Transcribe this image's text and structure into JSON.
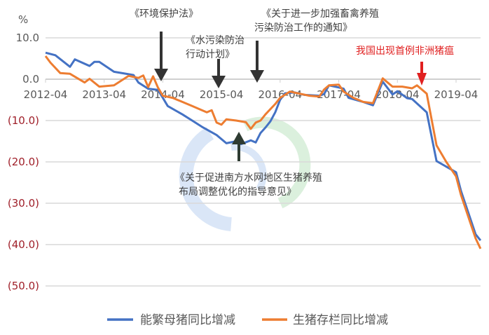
{
  "chart_data": {
    "type": "line",
    "ylabel": "%",
    "ylim": [
      -50,
      10
    ],
    "yticks": [
      10,
      0,
      -10,
      -20,
      -30,
      -40,
      -50
    ],
    "ytick_labels": [
      "10.0",
      "0.0",
      "(10.0)",
      "(20.0)",
      "(30.0)",
      "(40.0)",
      "(50.0)"
    ],
    "xtick_labels": [
      "2012-04",
      "2013-04",
      "2014-04",
      "2015-04",
      "2016-04",
      "2017-04",
      "2018-04",
      "2019-04"
    ],
    "xrange": [
      "2012-04",
      "2019-09"
    ],
    "grid": true,
    "legend_placement": "bottom",
    "series": [
      {
        "name": "能繁母猪同比增减",
        "color": "#4472c4",
        "points": [
          [
            "2012-04",
            6.4
          ],
          [
            "2012-06",
            5.8
          ],
          [
            "2012-09",
            3.0
          ],
          [
            "2012-10",
            4.8
          ],
          [
            "2013-01",
            3.2
          ],
          [
            "2013-02",
            4.2
          ],
          [
            "2013-03",
            4.2
          ],
          [
            "2013-06",
            1.8
          ],
          [
            "2013-09",
            1.2
          ],
          [
            "2013-10",
            1.0
          ],
          [
            "2013-11",
            -0.8
          ],
          [
            "2014-01",
            -2.3
          ],
          [
            "2014-03",
            -2.6
          ],
          [
            "2014-04",
            -4.5
          ],
          [
            "2014-05",
            -6.5
          ],
          [
            "2014-08",
            -8.5
          ],
          [
            "2014-10",
            -10.0
          ],
          [
            "2014-12",
            -11.5
          ],
          [
            "2015-03",
            -13.5
          ],
          [
            "2015-05",
            -15.5
          ],
          [
            "2015-07",
            -15.0
          ],
          [
            "2015-08",
            -15.7
          ],
          [
            "2015-10",
            -14.8
          ],
          [
            "2015-11",
            -15.3
          ],
          [
            "2015-12",
            -13.0
          ],
          [
            "2016-01",
            -11.7
          ],
          [
            "2016-02",
            -10.2
          ],
          [
            "2016-03",
            -8.0
          ],
          [
            "2016-04",
            -5.0
          ],
          [
            "2016-05",
            -3.4
          ],
          [
            "2016-07",
            -3.2
          ],
          [
            "2016-09",
            -3.8
          ],
          [
            "2016-12",
            -4.0
          ],
          [
            "2017-01",
            -3.6
          ],
          [
            "2017-02",
            -1.5
          ],
          [
            "2017-04",
            -2.0
          ],
          [
            "2017-05",
            -2.3
          ],
          [
            "2017-06",
            -4.5
          ],
          [
            "2017-09",
            -5.5
          ],
          [
            "2017-11",
            -6.3
          ],
          [
            "2018-01",
            -0.6
          ],
          [
            "2018-03",
            -3.7
          ],
          [
            "2018-04",
            -2.9
          ],
          [
            "2018-06",
            -4.6
          ],
          [
            "2018-07",
            -4.8
          ],
          [
            "2018-10",
            -8.0
          ],
          [
            "2018-12",
            -19.8
          ],
          [
            "2019-04",
            -22.5
          ],
          [
            "2019-05",
            -27.0
          ],
          [
            "2019-07",
            -34.0
          ],
          [
            "2019-08",
            -37.5
          ],
          [
            "2019-09",
            -39.0
          ]
        ]
      },
      {
        "name": "生猪存栏同比增减",
        "color": "#ed7d31",
        "points": [
          [
            "2012-04",
            5.6
          ],
          [
            "2012-05",
            4.0
          ],
          [
            "2012-07",
            1.5
          ],
          [
            "2012-09",
            1.3
          ],
          [
            "2012-12",
            -0.8
          ],
          [
            "2013-01",
            0.1
          ],
          [
            "2013-03",
            -1.8
          ],
          [
            "2013-06",
            -1.5
          ],
          [
            "2013-09",
            0.8
          ],
          [
            "2013-11",
            0.3
          ],
          [
            "2013-12",
            0.9
          ],
          [
            "2014-01",
            -1.9
          ],
          [
            "2014-02",
            0.7
          ],
          [
            "2014-03",
            -2.0
          ],
          [
            "2014-04",
            -4.0
          ],
          [
            "2014-06",
            -4.5
          ],
          [
            "2014-08",
            -5.5
          ],
          [
            "2014-10",
            -6.5
          ],
          [
            "2014-12",
            -7.5
          ],
          [
            "2015-01",
            -8.0
          ],
          [
            "2015-02",
            -7.5
          ],
          [
            "2015-03",
            -10.5
          ],
          [
            "2015-04",
            -11.0
          ],
          [
            "2015-05",
            -9.7
          ],
          [
            "2015-07",
            -10.0
          ],
          [
            "2015-09",
            -10.4
          ],
          [
            "2015-10",
            -12.0
          ],
          [
            "2015-11",
            -10.5
          ],
          [
            "2015-12",
            -10.0
          ],
          [
            "2016-01",
            -8.5
          ],
          [
            "2016-03",
            -6.0
          ],
          [
            "2016-04",
            -4.5
          ],
          [
            "2016-06",
            -3.0
          ],
          [
            "2016-08",
            -3.5
          ],
          [
            "2016-10",
            -4.0
          ],
          [
            "2016-12",
            -4.2
          ],
          [
            "2017-01",
            -2.5
          ],
          [
            "2017-02",
            -1.5
          ],
          [
            "2017-04",
            -1.3
          ],
          [
            "2017-05",
            -3.0
          ],
          [
            "2017-07",
            -4.5
          ],
          [
            "2017-09",
            -5.5
          ],
          [
            "2017-11",
            -5.8
          ],
          [
            "2018-01",
            0.2
          ],
          [
            "2018-03",
            -1.8
          ],
          [
            "2018-05",
            -1.8
          ],
          [
            "2018-07",
            -2.2
          ],
          [
            "2018-08",
            -1.5
          ],
          [
            "2018-10",
            -3.5
          ],
          [
            "2018-12",
            -16.0
          ],
          [
            "2019-02",
            -20.0
          ],
          [
            "2019-04",
            -23.5
          ],
          [
            "2019-05",
            -28.0
          ],
          [
            "2019-07",
            -35.0
          ],
          [
            "2019-08",
            -38.5
          ],
          [
            "2019-09",
            -41.0
          ]
        ]
      }
    ],
    "annotations": [
      {
        "lines": [
          "《环境保护法》"
        ],
        "date": "2014-04",
        "arrow": "down",
        "color": "#404040"
      },
      {
        "lines": [
          "《水污染防治",
          "行动计划》"
        ],
        "date": "2015-04",
        "arrow": "down",
        "color": "#404040"
      },
      {
        "lines": [
          "《关于进一步加强畜禽养殖",
          "污染防治工作的通知》"
        ],
        "date": "2015-11",
        "arrow": "down",
        "color": "#404040"
      },
      {
        "lines": [
          "《关于促进南方水网地区生猪养殖",
          "布局调整优化的指导意见》"
        ],
        "date": "2015-08",
        "arrow": "up",
        "color": "#404040"
      },
      {
        "lines": [
          "我国出现首例非洲猪瘟"
        ],
        "date": "2018-08",
        "arrow": "down",
        "color": "#e02020"
      }
    ]
  }
}
